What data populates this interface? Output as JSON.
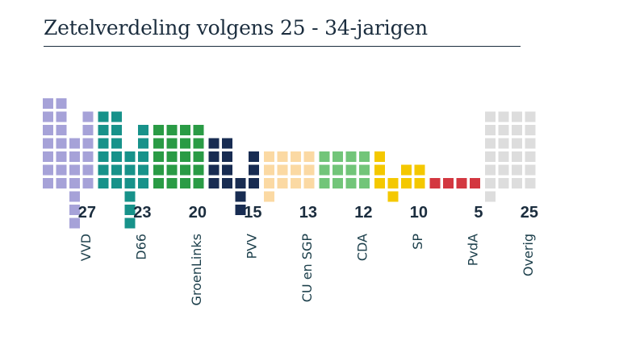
{
  "chart_data": {
    "type": "bar",
    "title": "Zetelverdeling volgens 25 - 34-jarigen",
    "xlabel": "",
    "ylabel": "",
    "categories": [
      "VVD",
      "D66",
      "GroenLinks",
      "PVV",
      "CU en SGP",
      "CDA",
      "SP",
      "PvdA",
      "Overig"
    ],
    "values": [
      27,
      23,
      20,
      15,
      13,
      12,
      10,
      5,
      25
    ],
    "colors": [
      "#a6a2d8",
      "#17928a",
      "#2a9b45",
      "#182c52",
      "#fbd9a3",
      "#72c579",
      "#f4c800",
      "#d33740",
      "#dddddd"
    ],
    "legend": "none",
    "grid": false
  }
}
